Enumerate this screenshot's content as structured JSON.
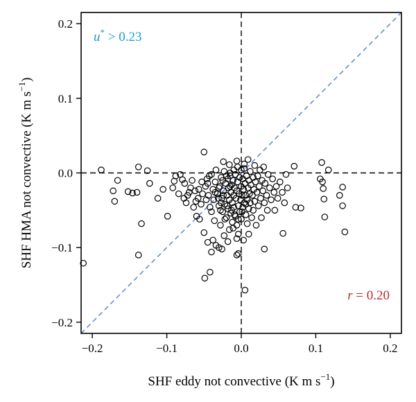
{
  "chart_data": {
    "type": "scatter",
    "xlabel": "SHF eddy not convective (K m s",
    "xlabel_sup": "−1",
    "xlabel_end": ")",
    "ylabel": "SHF HMA not convective (K m s",
    "ylabel_sup": "−1",
    "ylabel_end": ")",
    "xlim": [
      -0.215,
      0.215
    ],
    "ylim": [
      -0.215,
      0.215
    ],
    "xticks": [
      -0.2,
      -0.1,
      0.0,
      0.1,
      0.2
    ],
    "xtick_labels": [
      "−0.2",
      "−0.1",
      "0.0",
      "0.1",
      "0.2"
    ],
    "yticks": [
      -0.2,
      -0.1,
      0.0,
      0.1,
      0.2
    ],
    "ytick_labels": [
      "−0.2",
      "−0.1",
      "0.0",
      "0.1",
      "0.2"
    ],
    "grid": false,
    "reference_lines": {
      "x_zero": true,
      "y_zero": true,
      "one_to_one": true
    },
    "annotations": [
      {
        "id": "ustar",
        "var": "u",
        "sup": "*",
        "rest": " > 0.23",
        "color": "#1a9ad6",
        "position": "top-left"
      },
      {
        "id": "r",
        "var": "r",
        "rest": " = 0.20",
        "color": "#c0282d",
        "position": "bottom-right"
      }
    ],
    "marker_color": "#000000",
    "one_to_one_color": "#5b8fd6",
    "series": [
      {
        "points": [
          [
            -0.212,
            -0.121
          ],
          [
            -0.188,
            0.004
          ],
          [
            -0.172,
            -0.024
          ],
          [
            -0.17,
            -0.038
          ],
          [
            -0.166,
            -0.01
          ],
          [
            -0.152,
            -0.025
          ],
          [
            -0.146,
            -0.027
          ],
          [
            -0.14,
            -0.026
          ],
          [
            -0.138,
            0.008
          ],
          [
            -0.134,
            -0.068
          ],
          [
            -0.138,
            -0.11
          ],
          [
            -0.126,
            0.003
          ],
          [
            -0.123,
            -0.014
          ],
          [
            -0.112,
            -0.034
          ],
          [
            -0.105,
            -0.022
          ],
          [
            -0.099,
            -0.058
          ],
          [
            -0.092,
            -0.02
          ],
          [
            -0.09,
            -0.011
          ],
          [
            -0.088,
            -0.004
          ],
          [
            -0.082,
            -0.002
          ],
          [
            -0.079,
            -0.009
          ],
          [
            -0.076,
            -0.014
          ],
          [
            -0.074,
            -0.04
          ],
          [
            -0.072,
            -0.03
          ],
          [
            -0.068,
            -0.02
          ],
          [
            -0.066,
            -0.01
          ],
          [
            -0.062,
            -0.024
          ],
          [
            -0.06,
            -0.058
          ],
          [
            -0.058,
            -0.034
          ],
          [
            -0.056,
            -0.062
          ],
          [
            -0.054,
            -0.042
          ],
          [
            -0.052,
            -0.028
          ],
          [
            -0.05,
            -0.08
          ],
          [
            -0.048,
            -0.018
          ],
          [
            -0.046,
            -0.008
          ],
          [
            -0.044,
            -0.03
          ],
          [
            -0.042,
            -0.046
          ],
          [
            -0.04,
            -0.052
          ],
          [
            -0.04,
            -0.002
          ],
          [
            -0.038,
            -0.022
          ],
          [
            -0.037,
            -0.036
          ],
          [
            -0.036,
            -0.064
          ],
          [
            -0.035,
            -0.012
          ],
          [
            -0.034,
            0.004
          ],
          [
            -0.032,
            -0.028
          ],
          [
            -0.03,
            -0.044
          ],
          [
            -0.029,
            -0.018
          ],
          [
            -0.028,
            -0.07
          ],
          [
            -0.027,
            -0.006
          ],
          [
            -0.026,
            -0.034
          ],
          [
            -0.025,
            -0.052
          ],
          [
            -0.024,
            -0.024
          ],
          [
            -0.023,
            0.002
          ],
          [
            -0.022,
            -0.042
          ],
          [
            -0.021,
            -0.014
          ],
          [
            -0.02,
            -0.06
          ],
          [
            -0.019,
            -0.03
          ],
          [
            -0.018,
            -0.008
          ],
          [
            -0.018,
            -0.048
          ],
          [
            -0.017,
            -0.02
          ],
          [
            -0.016,
            -0.036
          ],
          [
            -0.016,
            -0.076
          ],
          [
            -0.015,
            -0.004
          ],
          [
            -0.014,
            -0.026
          ],
          [
            -0.014,
            -0.054
          ],
          [
            -0.013,
            -0.016
          ],
          [
            -0.012,
            -0.04
          ],
          [
            -0.012,
            -0.066
          ],
          [
            -0.011,
            -0.01
          ],
          [
            -0.01,
            -0.03
          ],
          [
            -0.01,
            -0.046
          ],
          [
            -0.009,
            -0.02
          ],
          [
            -0.008,
            -0.058
          ],
          [
            -0.008,
            -0.002
          ],
          [
            -0.007,
            -0.034
          ],
          [
            -0.006,
            -0.024
          ],
          [
            -0.006,
            -0.07
          ],
          [
            -0.005,
            -0.012
          ],
          [
            -0.004,
            -0.044
          ],
          [
            -0.004,
            -0.082
          ],
          [
            -0.003,
            -0.028
          ],
          [
            -0.002,
            -0.006
          ],
          [
            -0.002,
            -0.052
          ],
          [
            -0.001,
            -0.036
          ],
          [
            0.0,
            -0.018
          ],
          [
            0.0,
            -0.062
          ],
          [
            0.001,
            -0.03
          ],
          [
            0.002,
            -0.008
          ],
          [
            0.002,
            -0.046
          ],
          [
            0.003,
            -0.022
          ],
          [
            0.004,
            -0.04
          ],
          [
            0.004,
            0.006
          ],
          [
            0.005,
            -0.014
          ],
          [
            0.006,
            -0.056
          ],
          [
            0.006,
            -0.03
          ],
          [
            0.007,
            -0.004
          ],
          [
            0.008,
            -0.036
          ],
          [
            0.008,
            -0.068
          ],
          [
            0.009,
            -0.02
          ],
          [
            0.01,
            -0.01
          ],
          [
            0.01,
            -0.048
          ],
          [
            0.011,
            -0.028
          ],
          [
            0.012,
            0.002
          ],
          [
            0.012,
            -0.04
          ],
          [
            0.013,
            -0.016
          ],
          [
            0.014,
            -0.06
          ],
          [
            0.015,
            -0.03
          ],
          [
            0.016,
            -0.006
          ],
          [
            0.016,
            -0.05
          ],
          [
            0.017,
            -0.022
          ],
          [
            0.018,
            0.01
          ],
          [
            0.018,
            -0.038
          ],
          [
            0.019,
            -0.012
          ],
          [
            0.02,
            -0.07
          ],
          [
            0.021,
            -0.026
          ],
          [
            0.022,
            -0.004
          ],
          [
            0.023,
            -0.044
          ],
          [
            0.024,
            -0.018
          ],
          [
            0.025,
            0.004
          ],
          [
            0.026,
            -0.034
          ],
          [
            0.027,
            -0.06
          ],
          [
            0.028,
            -0.01
          ],
          [
            0.029,
            -0.024
          ],
          [
            0.03,
            0.008
          ],
          [
            0.031,
            -0.04
          ],
          [
            0.032,
            -0.014
          ],
          [
            0.034,
            -0.03
          ],
          [
            0.035,
            -0.05
          ],
          [
            0.036,
            -0.002
          ],
          [
            0.038,
            -0.02
          ],
          [
            0.04,
            -0.036
          ],
          [
            0.042,
            -0.008
          ],
          [
            0.044,
            -0.026
          ],
          [
            0.045,
            -0.05
          ],
          [
            0.047,
            -0.018
          ],
          [
            0.049,
            -0.034
          ],
          [
            0.052,
            -0.012
          ],
          [
            0.055,
            -0.026
          ],
          [
            0.058,
            -0.04
          ],
          [
            0.06,
            -0.002
          ],
          [
            0.062,
            -0.02
          ],
          [
            0.071,
            0.009
          ],
          [
            0.073,
            -0.046
          ],
          [
            0.08,
            -0.047
          ],
          [
            0.056,
            -0.081
          ],
          [
            0.031,
            -0.102
          ],
          [
            0.005,
            -0.157
          ],
          [
            -0.004,
            -0.108
          ],
          [
            -0.006,
            -0.11
          ],
          [
            -0.018,
            -0.092
          ],
          [
            -0.023,
            -0.084
          ],
          [
            -0.026,
            -0.102
          ],
          [
            -0.03,
            -0.1
          ],
          [
            -0.034,
            -0.097
          ],
          [
            -0.038,
            -0.09
          ],
          [
            -0.04,
            -0.106
          ],
          [
            -0.045,
            -0.093
          ],
          [
            -0.049,
            -0.141
          ],
          [
            -0.042,
            -0.133
          ],
          [
            -0.05,
            0.028
          ],
          [
            -0.024,
            0.015
          ],
          [
            -0.016,
            0.011
          ],
          [
            -0.006,
            0.016
          ],
          [
            0.009,
            0.018
          ],
          [
            0.106,
            -0.008
          ],
          [
            0.108,
            0.014
          ],
          [
            0.11,
            -0.021
          ],
          [
            0.111,
            -0.035
          ],
          [
            0.112,
            -0.059
          ],
          [
            0.117,
            0.004
          ],
          [
            0.132,
            -0.03
          ],
          [
            0.136,
            -0.019
          ],
          [
            0.136,
            -0.044
          ],
          [
            0.139,
            -0.079
          ],
          [
            0.109,
            -0.012
          ],
          [
            -0.03,
            -0.02
          ],
          [
            -0.025,
            -0.01
          ],
          [
            -0.02,
            -0.004
          ],
          [
            -0.015,
            -0.018
          ],
          [
            -0.028,
            -0.05
          ],
          [
            -0.022,
            -0.062
          ],
          [
            -0.011,
            -0.074
          ],
          [
            -0.006,
            -0.088
          ],
          [
            0.003,
            -0.09
          ],
          [
            0.01,
            -0.082
          ],
          [
            -0.035,
            -0.026
          ],
          [
            -0.031,
            -0.034
          ],
          [
            -0.027,
            -0.04
          ],
          [
            -0.024,
            -0.03
          ],
          [
            -0.019,
            -0.044
          ],
          [
            -0.013,
            -0.05
          ],
          [
            -0.009,
            -0.056
          ],
          [
            -0.004,
            -0.062
          ],
          [
            0.001,
            -0.052
          ],
          [
            0.006,
            -0.042
          ],
          [
            -0.045,
            -0.014
          ],
          [
            -0.043,
            -0.004
          ],
          [
            -0.047,
            -0.036
          ],
          [
            -0.053,
            -0.012
          ],
          [
            -0.057,
            -0.022
          ],
          [
            -0.061,
            -0.038
          ],
          [
            -0.064,
            -0.046
          ],
          [
            -0.07,
            -0.026
          ],
          [
            -0.077,
            -0.034
          ],
          [
            -0.084,
            -0.028
          ],
          [
            -0.015,
            0.0
          ],
          [
            -0.01,
            0.004
          ],
          [
            -0.005,
            0.008
          ],
          [
            0.0,
            0.004
          ],
          [
            0.004,
            0.012
          ]
        ]
      }
    ]
  }
}
